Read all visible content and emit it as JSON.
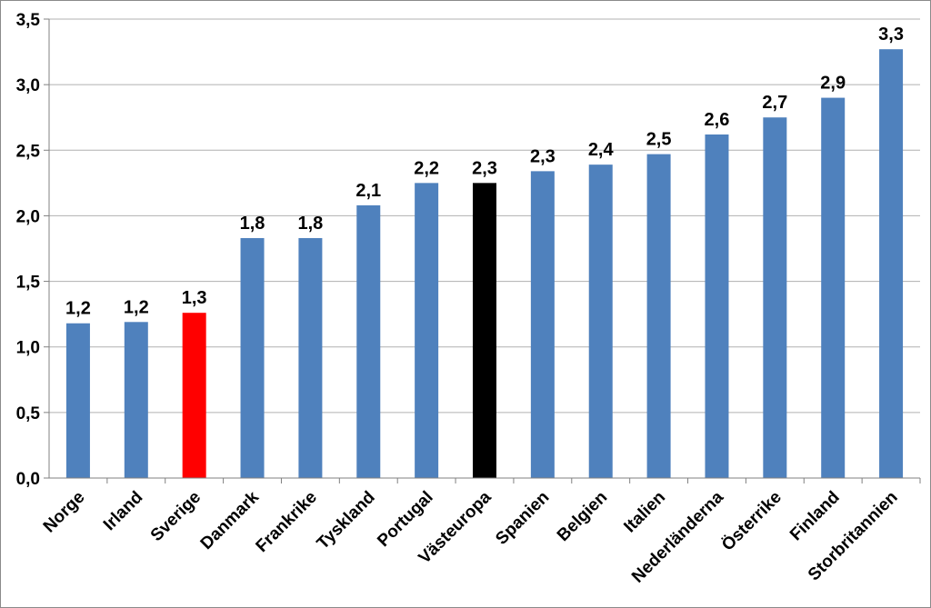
{
  "chart_data": {
    "type": "bar",
    "categories": [
      "Norge",
      "Irland",
      "Sverige",
      "Danmark",
      "Frankrike",
      "Tyskland",
      "Portugal",
      "Västeuropa",
      "Spanien",
      "Belgien",
      "Italien",
      "Nederländerna",
      "Österrike",
      "Finland",
      "Storbritannien"
    ],
    "values": [
      1.18,
      1.19,
      1.26,
      1.83,
      1.83,
      2.08,
      2.25,
      2.25,
      2.34,
      2.39,
      2.47,
      2.62,
      2.75,
      2.9,
      3.27
    ],
    "data_labels": [
      "1,2",
      "1,2",
      "1,3",
      "1,8",
      "1,8",
      "2,1",
      "2,2",
      "2,3",
      "2,3",
      "2,4",
      "2,5",
      "2,6",
      "2,7",
      "2,9",
      "3,3"
    ],
    "y_ticks": [
      "0,0",
      "0,5",
      "1,0",
      "1,5",
      "2,0",
      "2,5",
      "3,0",
      "3,5"
    ],
    "ylim": [
      0,
      3.5
    ],
    "grid": true,
    "legend": "none",
    "title": "",
    "xlabel": "",
    "ylabel": "",
    "colors": {
      "default": "#4f81bd",
      "Sverige": "#ff0000",
      "Västeuropa": "#000000",
      "grid": "#b0b0b0",
      "axis": "#808080"
    }
  }
}
